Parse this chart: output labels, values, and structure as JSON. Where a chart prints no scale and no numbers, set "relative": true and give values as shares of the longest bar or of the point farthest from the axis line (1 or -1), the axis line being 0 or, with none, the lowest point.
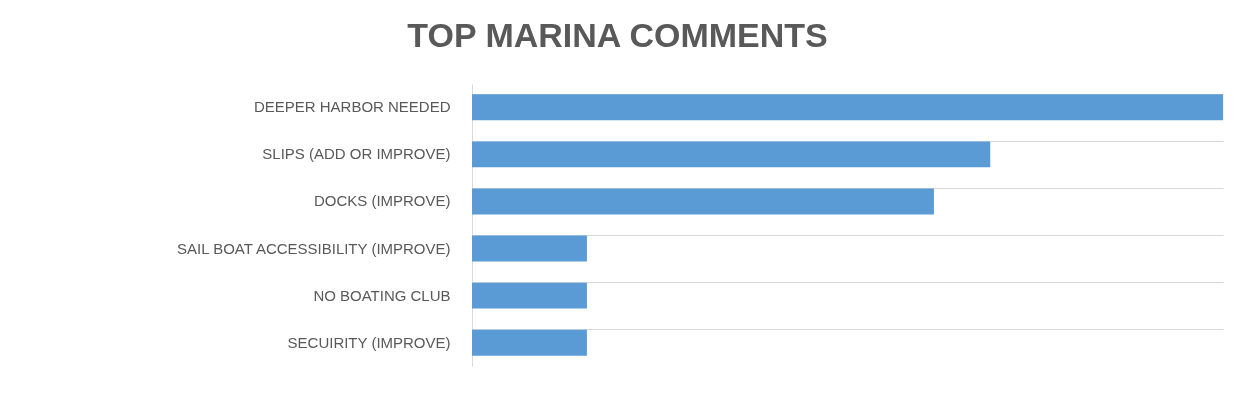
{
  "chart_data": {
    "type": "bar",
    "orientation": "horizontal",
    "relative": true,
    "title": "TOP MARINA COMMENTS",
    "categories": [
      "DEEPER HARBOR NEEDED",
      "SLIPS (ADD OR IMPROVE)",
      "DOCKS (IMPROVE)",
      "SAIL BOAT ACCESSIBILITY  (IMPROVE)",
      "NO BOATING CLUB",
      "SECUIRITY (IMPROVE)"
    ],
    "values": [
      1,
      0.69,
      0.615,
      0.153,
      0.153,
      0.153
    ],
    "color": "#5b9bd5",
    "grid": "y"
  }
}
